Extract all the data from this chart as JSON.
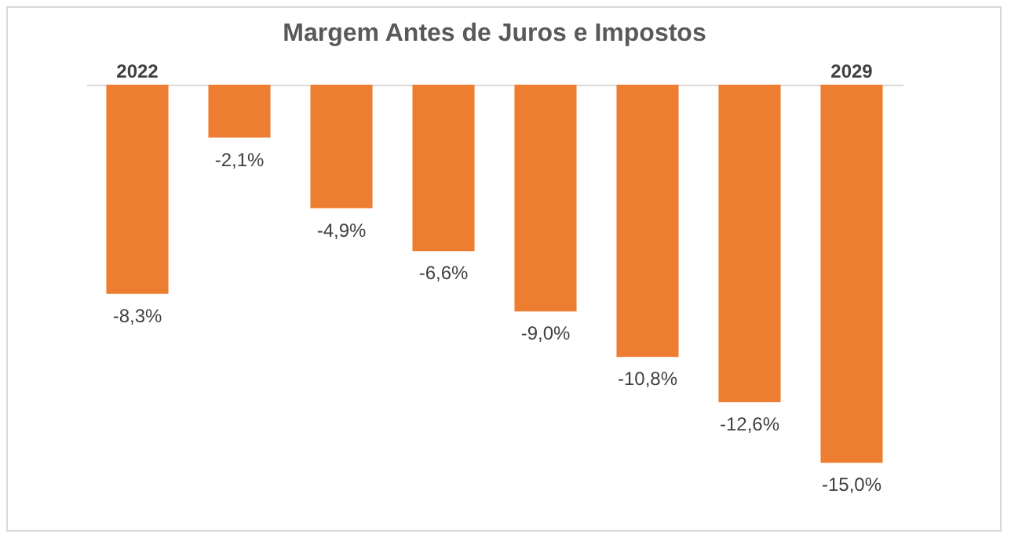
{
  "chart_data": {
    "type": "bar",
    "title": "Margem Antes de Juros e Impostos",
    "categories": [
      "2022",
      null,
      null,
      null,
      null,
      null,
      null,
      "2029"
    ],
    "values": [
      -8.3,
      -2.1,
      -4.9,
      -6.6,
      -9.0,
      -10.8,
      -12.6,
      -15.0
    ],
    "value_labels": [
      "-8,3%",
      "-2,1%",
      "-4,9%",
      "-6,6%",
      "-9,0%",
      "-10,8%",
      "-12,6%",
      "-15,0%"
    ],
    "color": "#ed7d31"
  }
}
